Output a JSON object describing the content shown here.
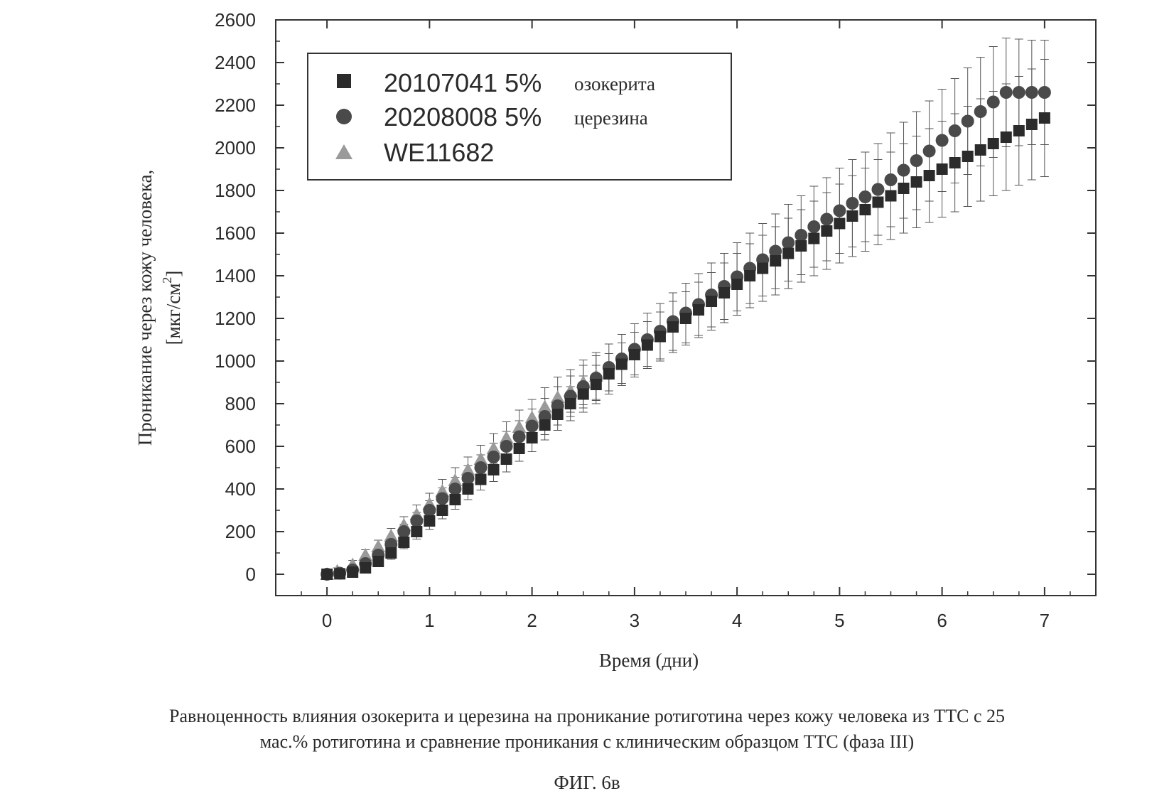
{
  "chart_data": {
    "type": "scatter",
    "xlabel": "Время (дни)",
    "ylabel_line1": "Проникание через кожу человека,",
    "ylabel_line2_prefix": "[мкг/см",
    "ylabel_line2_sup": "2",
    "ylabel_line2_suffix": "]",
    "xlim": [
      -0.5,
      7.5
    ],
    "ylim": [
      -100,
      2600
    ],
    "xticks": [
      "0",
      "1",
      "2",
      "3",
      "4",
      "5",
      "6",
      "7"
    ],
    "yticks": [
      "0",
      "200",
      "400",
      "600",
      "800",
      "1000",
      "1200",
      "1400",
      "1600",
      "1800",
      "2000",
      "2200",
      "2400",
      "2600"
    ],
    "legend_position": "top-left",
    "legend": [
      {
        "marker": "square",
        "number": "20107041 5%",
        "word": "озокерита"
      },
      {
        "marker": "circle",
        "number": "20208008 5%",
        "word": "церезина"
      },
      {
        "marker": "triangle",
        "number": "WE11682",
        "word": ""
      }
    ],
    "series": [
      {
        "marker": "square",
        "color": "#2b2b2b",
        "x": [
          0.0,
          0.125,
          0.25,
          0.375,
          0.5,
          0.625,
          0.75,
          0.875,
          1.0,
          1.125,
          1.25,
          1.375,
          1.5,
          1.625,
          1.75,
          1.875,
          2.0,
          2.125,
          2.25,
          2.375,
          2.5,
          2.625,
          2.75,
          2.875,
          3.0,
          3.125,
          3.25,
          3.375,
          3.5,
          3.625,
          3.75,
          3.875,
          4.0,
          4.125,
          4.25,
          4.375,
          4.5,
          4.625,
          4.75,
          4.875,
          5.0,
          5.125,
          5.25,
          5.375,
          5.5,
          5.625,
          5.75,
          5.875,
          6.0,
          6.125,
          6.25,
          6.375,
          6.5,
          6.625,
          6.75,
          6.875,
          7.0
        ],
        "y": [
          0,
          2,
          10,
          30,
          60,
          100,
          150,
          200,
          250,
          300,
          350,
          400,
          445,
          490,
          540,
          590,
          640,
          700,
          750,
          800,
          845,
          890,
          940,
          985,
          1030,
          1075,
          1115,
          1160,
          1200,
          1240,
          1280,
          1320,
          1360,
          1400,
          1435,
          1470,
          1505,
          1540,
          1575,
          1610,
          1645,
          1680,
          1710,
          1745,
          1775,
          1810,
          1840,
          1870,
          1900,
          1930,
          1960,
          1990,
          2020,
          2050,
          2080,
          2110,
          2140
        ],
        "err": [
          10,
          10,
          15,
          20,
          25,
          30,
          30,
          35,
          40,
          40,
          45,
          50,
          50,
          55,
          60,
          60,
          65,
          70,
          75,
          80,
          85,
          90,
          95,
          100,
          105,
          110,
          115,
          120,
          125,
          130,
          135,
          140,
          145,
          150,
          155,
          160,
          165,
          170,
          175,
          180,
          185,
          190,
          195,
          200,
          205,
          210,
          215,
          220,
          225,
          230,
          235,
          240,
          245,
          250,
          255,
          260,
          275
        ]
      },
      {
        "marker": "circle",
        "color": "#4a4a4a",
        "x": [
          0.0,
          0.125,
          0.25,
          0.375,
          0.5,
          0.625,
          0.75,
          0.875,
          1.0,
          1.125,
          1.25,
          1.375,
          1.5,
          1.625,
          1.75,
          1.875,
          2.0,
          2.125,
          2.25,
          2.375,
          2.5,
          2.625,
          2.75,
          2.875,
          3.0,
          3.125,
          3.25,
          3.375,
          3.5,
          3.625,
          3.75,
          3.875,
          4.0,
          4.125,
          4.25,
          4.375,
          4.5,
          4.625,
          4.75,
          4.875,
          5.0,
          5.125,
          5.25,
          5.375,
          5.5,
          5.625,
          5.75,
          5.875,
          6.0,
          6.125,
          6.25,
          6.375,
          6.5,
          6.625,
          6.75,
          6.875,
          7.0
        ],
        "y": [
          0,
          5,
          20,
          50,
          90,
          140,
          200,
          250,
          300,
          355,
          400,
          450,
          500,
          550,
          600,
          645,
          695,
          740,
          790,
          835,
          880,
          920,
          970,
          1010,
          1055,
          1100,
          1140,
          1185,
          1225,
          1265,
          1310,
          1350,
          1395,
          1435,
          1475,
          1515,
          1555,
          1590,
          1630,
          1665,
          1705,
          1740,
          1770,
          1805,
          1850,
          1895,
          1940,
          1985,
          2035,
          2080,
          2125,
          2170,
          2215,
          2260,
          2260,
          2260,
          2260
        ],
        "err": [
          10,
          10,
          15,
          20,
          25,
          30,
          35,
          40,
          45,
          50,
          55,
          60,
          60,
          65,
          70,
          75,
          80,
          85,
          90,
          95,
          100,
          105,
          110,
          115,
          120,
          125,
          130,
          135,
          140,
          145,
          150,
          155,
          160,
          165,
          170,
          175,
          180,
          185,
          190,
          195,
          200,
          205,
          210,
          215,
          220,
          225,
          230,
          235,
          240,
          245,
          250,
          255,
          260,
          255,
          250,
          245,
          245
        ]
      },
      {
        "marker": "triangle",
        "color": "#9a9a9a",
        "x": [
          0.0,
          0.1,
          0.25,
          0.375,
          0.5,
          0.625,
          0.75,
          0.875,
          1.0,
          1.125,
          1.25,
          1.375,
          1.5,
          1.625,
          1.75,
          1.875,
          2.0,
          2.125,
          2.25,
          2.375,
          2.5,
          2.625
        ],
        "y": [
          0,
          15,
          45,
          90,
          130,
          180,
          230,
          280,
          330,
          390,
          440,
          490,
          540,
          590,
          640,
          690,
          735,
          785,
          830,
          860,
          900,
          930
        ],
        "err": [
          10,
          15,
          20,
          25,
          30,
          35,
          40,
          45,
          50,
          55,
          60,
          60,
          65,
          70,
          75,
          80,
          85,
          90,
          95,
          100,
          105,
          110
        ]
      }
    ]
  },
  "caption": {
    "line1": "Равноценность влияния озокерита и церезина на проникание ротиготина через кожу человека из ТТС с 25",
    "line2": "мас.% ротиготина и сравнение проникания с клиническим образцом ТТС (фаза III)",
    "figure_label": "ФИГ. 6в"
  }
}
